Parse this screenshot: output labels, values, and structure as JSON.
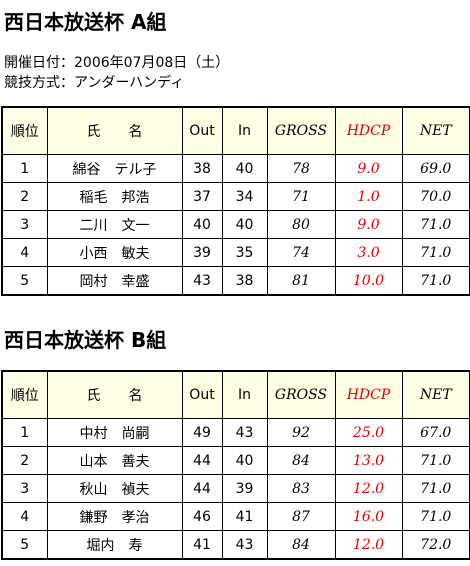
{
  "sections": [
    {
      "title": "西日本放送杯 A組",
      "info": [
        "開催日付：2006年07月08日（土）",
        "競技方式：アンダーハンディ"
      ],
      "table": {
        "header": [
          "順位",
          "氏　　名",
          "Out",
          "In",
          "GROSS",
          "HDCP",
          "NET"
        ],
        "rows": [
          [
            "1",
            "綿谷　テル子",
            "38",
            "40",
            "78",
            "9.0",
            "69.0"
          ],
          [
            "2",
            "稲毛　邦浩",
            "37",
            "34",
            "71",
            "1.0",
            "70.0"
          ],
          [
            "3",
            "二川　文一",
            "40",
            "40",
            "80",
            "9.0",
            "71.0"
          ],
          [
            "4",
            "小西　敏夫",
            "39",
            "35",
            "74",
            "3.0",
            "71.0"
          ],
          [
            "5",
            "岡村　幸盛",
            "43",
            "38",
            "81",
            "10.0",
            "71.0"
          ]
        ]
      }
    },
    {
      "title": "西日本放送杯 B組",
      "table": {
        "header": [
          "順位",
          "氏　　名",
          "Out",
          "In",
          "GROSS",
          "HDCP",
          "NET"
        ],
        "rows": [
          [
            "1",
            "中村　尚嗣",
            "49",
            "43",
            "92",
            "25.0",
            "67.0"
          ],
          [
            "2",
            "山本　善夫",
            "44",
            "40",
            "84",
            "13.0",
            "71.0"
          ],
          [
            "3",
            "秋山　禎夫",
            "44",
            "39",
            "83",
            "12.0",
            "71.0"
          ],
          [
            "4",
            "鎌野　孝治",
            "46",
            "41",
            "87",
            "16.0",
            "71.0"
          ],
          [
            "5",
            "堀内　寿",
            "41",
            "43",
            "84",
            "12.0",
            "72.0"
          ]
        ]
      }
    }
  ]
}
